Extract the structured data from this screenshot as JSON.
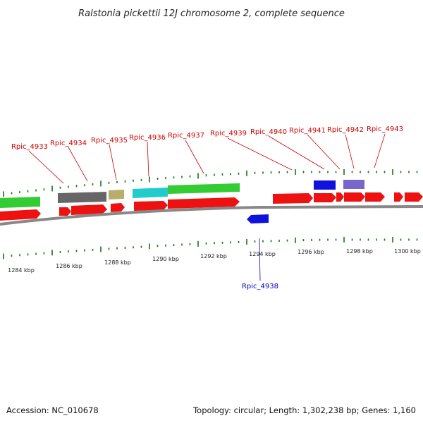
{
  "title": "Ralstonia pickettii 12J chromosome 2, complete sequence",
  "footer": {
    "accession": "Accession: NC_010678",
    "topology": "Topology: circular; Length: 1,302,238 bp; Genes: 1,160"
  },
  "colors": {
    "forward_gene": "#ee1111",
    "reverse_gene_blue": "#1111dd",
    "green_gene": "#33cc33",
    "gray_gene": "#666666",
    "olive_gene": "#b8ad6a",
    "cyan_gene": "#22cccc",
    "lavender_gene": "#7766cc",
    "chromosome_line": "#888888",
    "tick_mark": "#117711",
    "label_forward": "#cc0000",
    "label_reverse": "#0000cc"
  },
  "scale": {
    "unit": "kbp",
    "tick_labels": [
      "1284 kbp",
      "1286 kbp",
      "1288 kbp",
      "1290 kbp",
      "1292 kbp",
      "1294 kbp",
      "1296 kbp",
      "1298 kbp",
      "1300 kbp"
    ]
  },
  "genes": [
    {
      "name": "Rpic_4933",
      "strand": "forward"
    },
    {
      "name": "Rpic_4934",
      "strand": "forward"
    },
    {
      "name": "Rpic_4935",
      "strand": "forward"
    },
    {
      "name": "Rpic_4936",
      "strand": "forward"
    },
    {
      "name": "Rpic_4937",
      "strand": "forward"
    },
    {
      "name": "Rpic_4938",
      "strand": "reverse"
    },
    {
      "name": "Rpic_4939",
      "strand": "forward"
    },
    {
      "name": "Rpic_4940",
      "strand": "forward"
    },
    {
      "name": "Rpic_4941",
      "strand": "forward"
    },
    {
      "name": "Rpic_4942",
      "strand": "forward"
    },
    {
      "name": "Rpic_4943",
      "strand": "forward"
    }
  ]
}
